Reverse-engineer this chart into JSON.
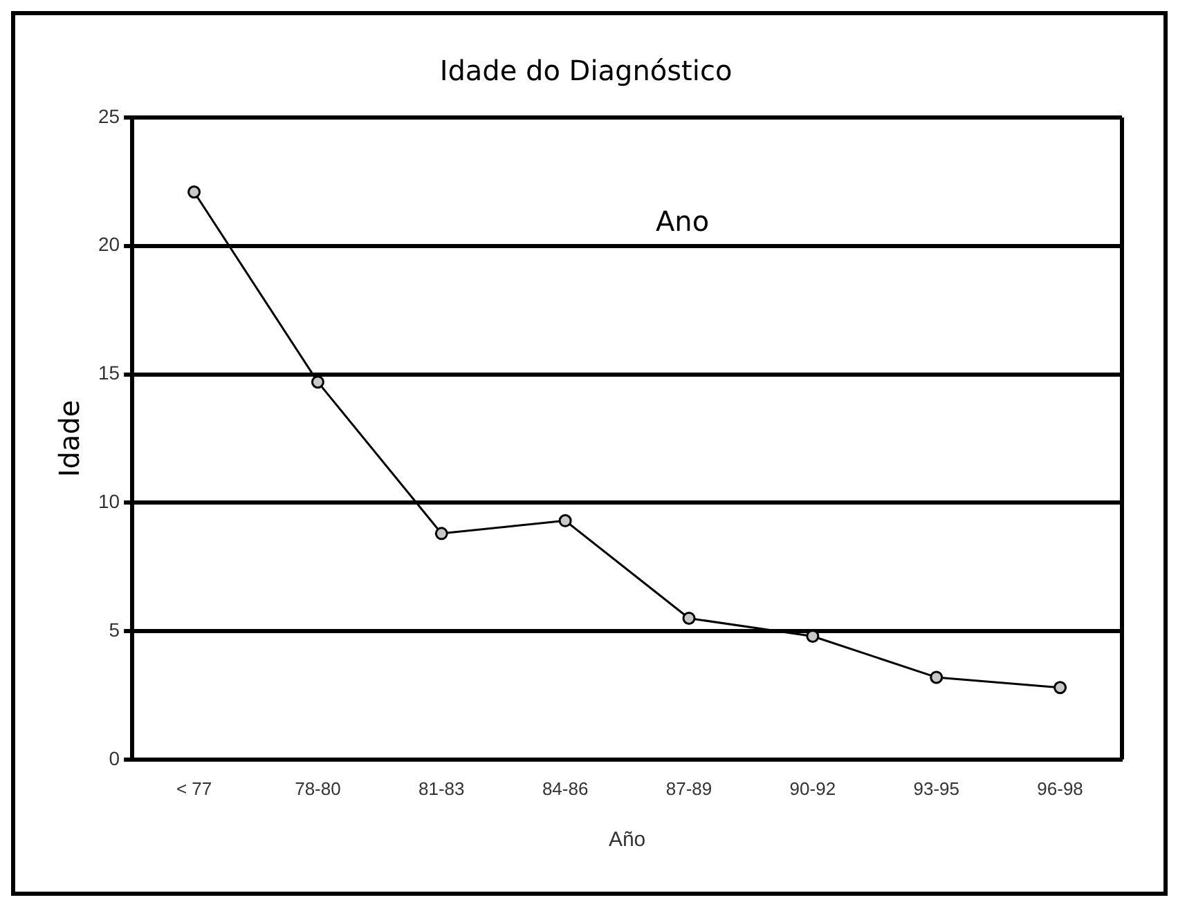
{
  "chart_data": {
    "type": "line",
    "title": "Idade do Diagnóstico",
    "xlabel": "Año",
    "ylabel": "Idade",
    "categories": [
      "< 77",
      "78-80",
      "81-83",
      "84-86",
      "87-89",
      "90-92",
      "93-95",
      "96-98"
    ],
    "series": [
      {
        "color": "#000000",
        "values": [
          22.1,
          14.7,
          8.8,
          9.3,
          5.5,
          4.8,
          3.2,
          2.8
        ]
      }
    ],
    "ylim": [
      0,
      25
    ],
    "yticks": [
      0,
      5,
      10,
      15,
      20,
      25
    ],
    "grid": "y",
    "marker": "circle",
    "line_style": "solid",
    "legend": false,
    "annotations": [
      "Ano"
    ]
  }
}
